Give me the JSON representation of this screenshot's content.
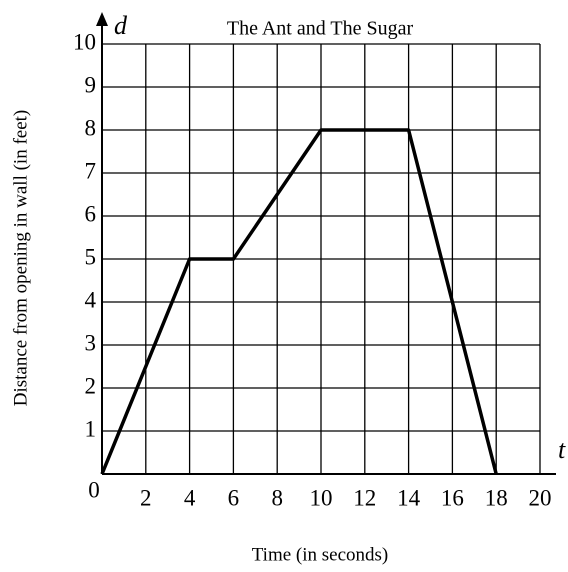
{
  "chart_data": {
    "type": "line",
    "title": "The Ant and The Sugar",
    "x_label": "Time (in seconds)",
    "y_label": "Distance from opening in wall (in feet)",
    "x_axis_name": "t",
    "y_axis_name": "d",
    "x": [
      0,
      4,
      6,
      10,
      14,
      18
    ],
    "series": [
      {
        "name": "d",
        "color": "#000000",
        "values": [
          0,
          5,
          5,
          8,
          8,
          0
        ]
      }
    ],
    "xlim": [
      0,
      20
    ],
    "xticks": [
      0,
      2,
      4,
      6,
      8,
      10,
      12,
      14,
      16,
      18,
      20
    ],
    "ylim": [
      0,
      10
    ],
    "yticks": [
      1,
      2,
      3,
      4,
      5,
      6,
      7,
      8,
      9,
      10
    ],
    "grid": true,
    "legend": false
  }
}
